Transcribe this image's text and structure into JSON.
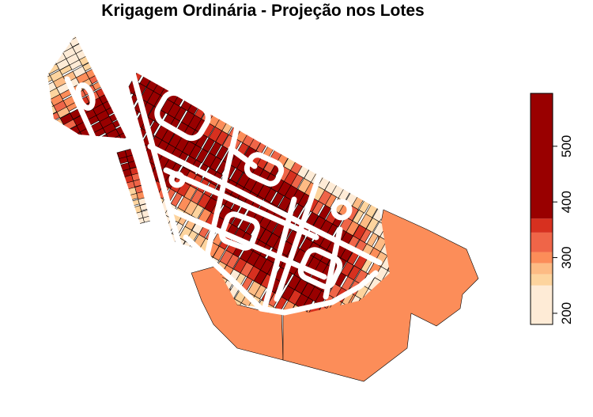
{
  "title": "Krigagem Ordinária - Projeção nos Lotes",
  "legend": {
    "range": [
      180,
      595
    ],
    "ticks": [
      "200",
      "300",
      "400",
      "500"
    ],
    "tick_values": [
      200,
      300,
      400,
      500
    ],
    "bins": [
      {
        "from": 180,
        "to": 250,
        "color": "#FEEBD6"
      },
      {
        "from": 250,
        "to": 270,
        "color": "#FDD49E"
      },
      {
        "from": 270,
        "to": 290,
        "color": "#FDBB84"
      },
      {
        "from": 290,
        "to": 310,
        "color": "#FC8D59"
      },
      {
        "from": 310,
        "to": 345,
        "color": "#EF6548"
      },
      {
        "from": 345,
        "to": 370,
        "color": "#D7301F"
      },
      {
        "from": 370,
        "to": 595,
        "color": "#990000"
      }
    ]
  },
  "colors": {
    "large_parcels": "#FC8D59",
    "lot_outline": "#000000",
    "streets": "#FFFFFF"
  }
}
